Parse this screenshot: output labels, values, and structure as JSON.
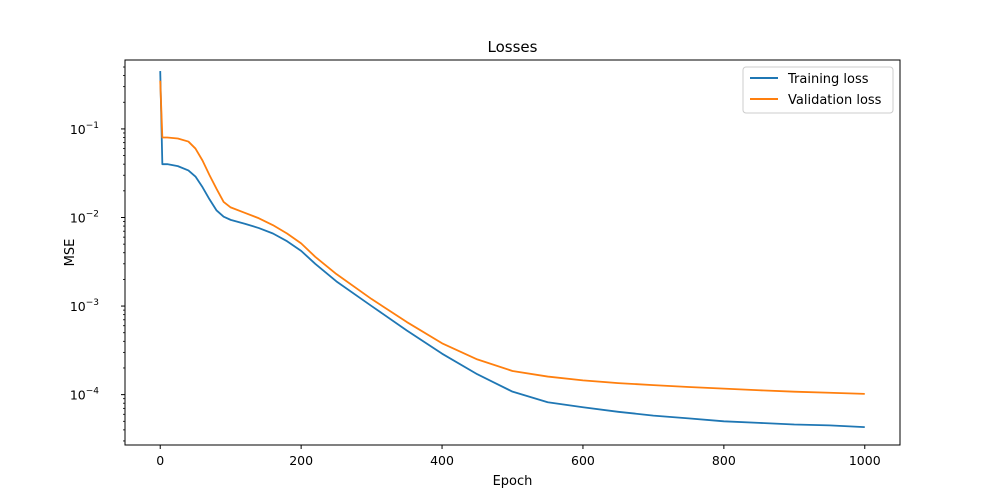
{
  "chart_data": {
    "type": "line",
    "title": "Losses",
    "xlabel": "Epoch",
    "ylabel": "MSE",
    "xlim": [
      -50,
      1050
    ],
    "ylim": [
      2.7e-05,
      0.6
    ],
    "yscale": "log",
    "xticks": [
      0,
      200,
      400,
      600,
      800,
      1000
    ],
    "yticks": [
      {
        "value": 0.0001,
        "base": "10",
        "exp": "−4"
      },
      {
        "value": 0.001,
        "base": "10",
        "exp": "−3"
      },
      {
        "value": 0.01,
        "base": "10",
        "exp": "−2"
      },
      {
        "value": 0.1,
        "base": "10",
        "exp": "−1"
      }
    ],
    "grid": false,
    "legend_position": "upper right",
    "series": [
      {
        "name": "Training loss",
        "color": "#1f77b4",
        "points": [
          [
            0,
            0.45
          ],
          [
            3,
            0.04
          ],
          [
            10,
            0.04
          ],
          [
            25,
            0.038
          ],
          [
            40,
            0.034
          ],
          [
            50,
            0.029
          ],
          [
            60,
            0.022
          ],
          [
            70,
            0.016
          ],
          [
            80,
            0.012
          ],
          [
            90,
            0.0102
          ],
          [
            100,
            0.0094
          ],
          [
            120,
            0.0085
          ],
          [
            140,
            0.0076
          ],
          [
            160,
            0.0066
          ],
          [
            180,
            0.0054
          ],
          [
            200,
            0.0042
          ],
          [
            220,
            0.003
          ],
          [
            250,
            0.0019
          ],
          [
            300,
            0.001
          ],
          [
            350,
            0.00053
          ],
          [
            400,
            0.00029
          ],
          [
            450,
            0.00017
          ],
          [
            500,
            0.000108
          ],
          [
            550,
            8.2e-05
          ],
          [
            600,
            7.2e-05
          ],
          [
            650,
            6.4e-05
          ],
          [
            700,
            5.8e-05
          ],
          [
            750,
            5.4e-05
          ],
          [
            800,
            5e-05
          ],
          [
            850,
            4.8e-05
          ],
          [
            900,
            4.6e-05
          ],
          [
            950,
            4.5e-05
          ],
          [
            1000,
            4.3e-05
          ]
        ]
      },
      {
        "name": "Validation loss",
        "color": "#ff7f0e",
        "points": [
          [
            0,
            0.35
          ],
          [
            3,
            0.08
          ],
          [
            10,
            0.08
          ],
          [
            25,
            0.078
          ],
          [
            40,
            0.072
          ],
          [
            50,
            0.06
          ],
          [
            60,
            0.044
          ],
          [
            70,
            0.03
          ],
          [
            80,
            0.021
          ],
          [
            90,
            0.015
          ],
          [
            100,
            0.013
          ],
          [
            120,
            0.0113
          ],
          [
            140,
            0.0098
          ],
          [
            160,
            0.0082
          ],
          [
            180,
            0.0066
          ],
          [
            200,
            0.0051
          ],
          [
            220,
            0.0036
          ],
          [
            250,
            0.0023
          ],
          [
            300,
            0.0012
          ],
          [
            350,
            0.00066
          ],
          [
            400,
            0.00038
          ],
          [
            450,
            0.00025
          ],
          [
            500,
            0.000185
          ],
          [
            550,
            0.00016
          ],
          [
            600,
            0.000145
          ],
          [
            650,
            0.000135
          ],
          [
            700,
            0.000128
          ],
          [
            750,
            0.000122
          ],
          [
            800,
            0.000117
          ],
          [
            850,
            0.000112
          ],
          [
            900,
            0.000108
          ],
          [
            950,
            0.000105
          ],
          [
            1000,
            0.000102
          ]
        ]
      }
    ]
  }
}
